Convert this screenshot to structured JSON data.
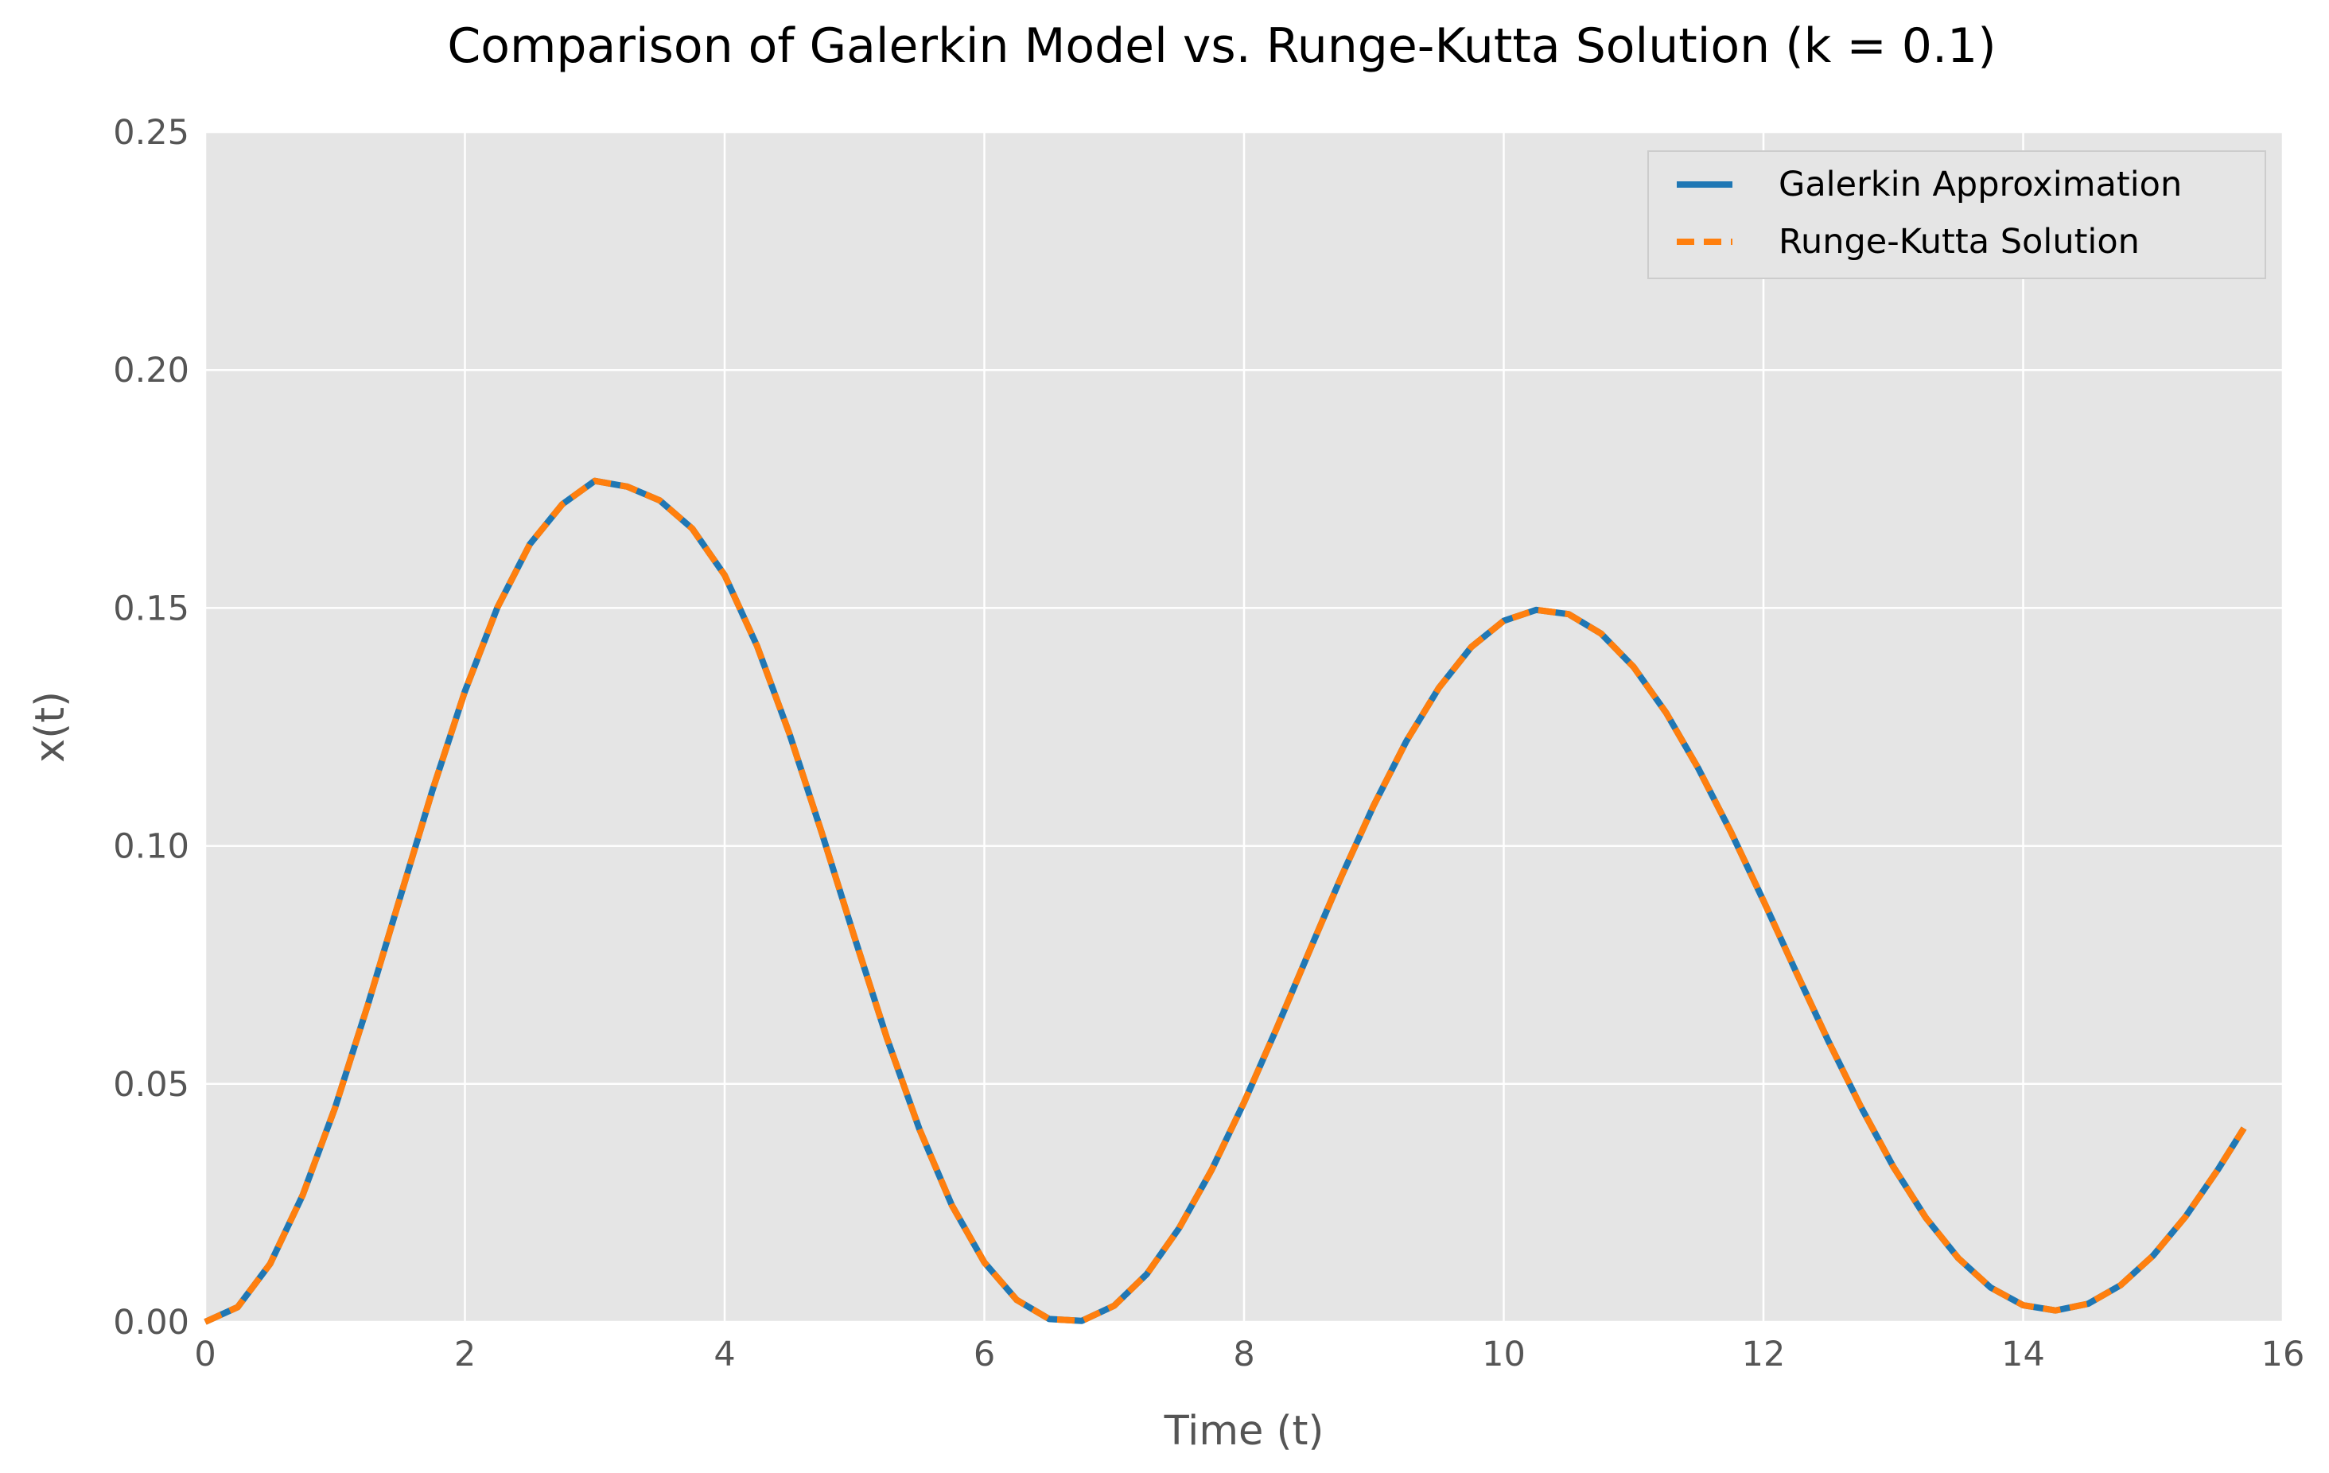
{
  "chart_data": {
    "type": "line",
    "title": "Comparison of Galerkin Model vs. Runge-Kutta Solution (k = 0.1)",
    "xlabel": "Time (t)",
    "ylabel": "x(t)",
    "xlim": [
      0,
      16
    ],
    "ylim": [
      0,
      0.25
    ],
    "xticks": [
      0,
      2,
      4,
      6,
      8,
      10,
      12,
      14,
      16
    ],
    "xtick_labels": [
      "0",
      "2",
      "4",
      "6",
      "8",
      "10",
      "12",
      "14",
      "16"
    ],
    "yticks": [
      0,
      0.05,
      0.1,
      0.15,
      0.2,
      0.25
    ],
    "ytick_labels": [
      "0.00",
      "0.05",
      "0.10",
      "0.15",
      "0.20",
      "0.25"
    ],
    "grid": true,
    "legend_position": "top-right",
    "x": [
      0,
      0.25,
      0.5,
      0.75,
      1.0,
      1.25,
      1.5,
      1.75,
      2.0,
      2.25,
      2.5,
      2.75,
      3.0,
      3.25,
      3.5,
      3.75,
      4.0,
      4.25,
      4.5,
      4.75,
      5.0,
      5.25,
      5.5,
      5.75,
      6.0,
      6.25,
      6.5,
      6.75,
      7.0,
      7.25,
      7.5,
      7.75,
      8.0,
      8.25,
      8.5,
      8.75,
      9.0,
      9.25,
      9.5,
      9.75,
      10.0,
      10.25,
      10.5,
      10.75,
      11.0,
      11.25,
      11.5,
      11.75,
      12.0,
      12.25,
      12.5,
      12.75,
      13.0,
      13.25,
      13.5,
      13.75,
      14.0,
      14.25,
      14.5,
      14.75,
      15.0,
      15.25,
      15.5,
      15.7
    ],
    "series": [
      {
        "name": "Galerkin Approximation",
        "color": "#1f77b4",
        "style": "solid",
        "values": [
          0.0,
          0.0031,
          0.0122,
          0.0266,
          0.045,
          0.0664,
          0.0891,
          0.1117,
          0.1325,
          0.1501,
          0.1634,
          0.1718,
          0.1767,
          0.1755,
          0.1726,
          0.1667,
          0.1569,
          0.142,
          0.1235,
          0.1026,
          0.0808,
          0.0596,
          0.0405,
          0.0245,
          0.0125,
          0.0046,
          0.0006,
          0.0002,
          0.0034,
          0.01,
          0.0197,
          0.0319,
          0.0461,
          0.0616,
          0.0777,
          0.0936,
          0.1086,
          0.122,
          0.1332,
          0.1418,
          0.1473,
          0.1496,
          0.1487,
          0.1446,
          0.1376,
          0.128,
          0.1162,
          0.1029,
          0.0885,
          0.0736,
          0.059,
          0.0452,
          0.0326,
          0.0219,
          0.0134,
          0.0072,
          0.0035,
          0.0024,
          0.0038,
          0.0077,
          0.0139,
          0.0221,
          0.032,
          0.0407
        ]
      },
      {
        "name": "Runge-Kutta Solution",
        "color": "#ff7f0e",
        "style": "dashed",
        "values": [
          0.0,
          0.0031,
          0.0122,
          0.0266,
          0.045,
          0.0664,
          0.0891,
          0.1117,
          0.1325,
          0.1501,
          0.1634,
          0.1718,
          0.1767,
          0.1755,
          0.1726,
          0.1667,
          0.1569,
          0.142,
          0.1235,
          0.1026,
          0.0808,
          0.0596,
          0.0405,
          0.0245,
          0.0125,
          0.0046,
          0.0006,
          0.0002,
          0.0034,
          0.01,
          0.0197,
          0.0319,
          0.0461,
          0.0616,
          0.0777,
          0.0936,
          0.1086,
          0.122,
          0.1332,
          0.1418,
          0.1473,
          0.1496,
          0.1487,
          0.1446,
          0.1376,
          0.128,
          0.1162,
          0.1029,
          0.0885,
          0.0736,
          0.059,
          0.0452,
          0.0326,
          0.0219,
          0.0134,
          0.0072,
          0.0035,
          0.0024,
          0.0038,
          0.0077,
          0.0139,
          0.0221,
          0.032,
          0.0407
        ]
      }
    ]
  }
}
